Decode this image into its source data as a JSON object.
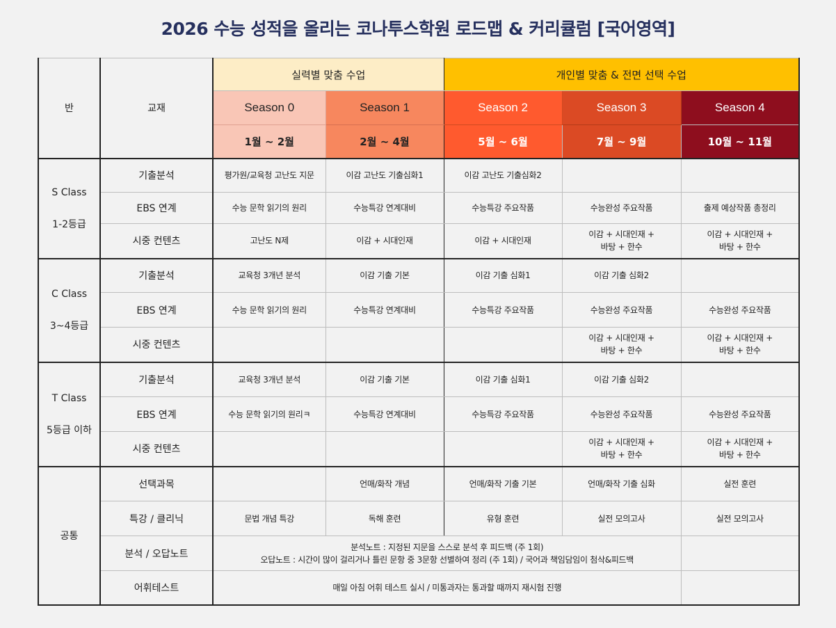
{
  "title": "2026 수능 성적을 올리는 코나투스학원 로드맵 & 커리큘럼 [국어영역]",
  "header": {
    "class_col": "반",
    "book_col": "교재",
    "group1": "실력별 맞춤 수업",
    "group2": "개인별 맞춤 & 전면 선택 수업",
    "seasons": [
      {
        "name": "Season 0",
        "months": "1월 ~ 2월",
        "color": "#f9c6b6"
      },
      {
        "name": "Season 1",
        "months": "2월 ~ 4월",
        "color": "#f7875e"
      },
      {
        "name": "Season 2",
        "months": "5월 ~ 6월",
        "color": "#ff5a2e"
      },
      {
        "name": "Season 3",
        "months": "7월 ~ 9월",
        "color": "#db4a24"
      },
      {
        "name": "Season 4",
        "months": "10월 ~ 11월",
        "color": "#8e0e1e"
      }
    ]
  },
  "classes": [
    {
      "name": "S Class",
      "grade": "1-2등급",
      "rows": [
        {
          "label": "기출분석",
          "cells": [
            "평가원/교육청 고난도 지문",
            "이감 고난도 기출심화1",
            "이감 고난도 기출심화2",
            "",
            ""
          ]
        },
        {
          "label": "EBS 연계",
          "cells": [
            "수능 문학 읽기의 원리",
            "수능특강 연계대비",
            "수능특강 주요작품",
            "수능완성 주요작품",
            "출제 예상작품 총정리"
          ]
        },
        {
          "label": "시중 컨텐츠",
          "cells": [
            "고난도 N제",
            "이감 + 시대인재",
            "이감 + 시대인재",
            "이감 + 시대인재 +\n바탕 + 한수",
            "이감 + 시대인재 +\n바탕 + 한수"
          ]
        }
      ]
    },
    {
      "name": "C Class",
      "grade": "3~4등급",
      "rows": [
        {
          "label": "기출분석",
          "cells": [
            "교육청 3개년 분석",
            "이감 기출 기본",
            "이감 기출 심화1",
            "이감 기출 심화2",
            ""
          ]
        },
        {
          "label": "EBS 연계",
          "cells": [
            "수능 문학 읽기의 원리",
            "수능특강 연계대비",
            "수능특강 주요작품",
            "수능완성 주요작품",
            "수능완성 주요작품"
          ]
        },
        {
          "label": "시중 컨텐츠",
          "cells": [
            "",
            "",
            "",
            "이감 + 시대인재 +\n바탕 + 한수",
            "이감 + 시대인재 +\n바탕 + 한수"
          ]
        }
      ]
    },
    {
      "name": "T Class",
      "grade": "5등급 이하",
      "rows": [
        {
          "label": "기출분석",
          "cells": [
            "교육청 3개년 분석",
            "이감 기출 기본",
            "이감 기출 심화1",
            "이감 기출 심화2",
            ""
          ]
        },
        {
          "label": "EBS 연계",
          "cells": [
            "수능 문학 읽기의 원리ㅋ",
            "수능특강 연계대비",
            "수능특강 주요작품",
            "수능완성 주요작품",
            "수능완성 주요작품"
          ]
        },
        {
          "label": "시중 컨텐츠",
          "cells": [
            "",
            "",
            "",
            "이감 + 시대인재 +\n바탕 + 한수",
            "이감 + 시대인재 +\n바탕 + 한수"
          ]
        }
      ]
    }
  ],
  "common": {
    "name": "공통",
    "elective": {
      "label": "선택과목",
      "cells": [
        "",
        "언매/화작 개념",
        "언매/화작 기출 기본",
        "언매/화작 기출 심화",
        "실전 훈련"
      ]
    },
    "special": {
      "label": "특강 / 클리닉",
      "cells": [
        "문법 개념 특강",
        "독해 훈련",
        "유형 훈련",
        "실전 모의고사",
        "실전 모의고사"
      ]
    },
    "notes": {
      "label": "분석 / 오답노트",
      "text": "분석노트 : 지정된 지문을 스스로 분석 후 피드백 (주 1회)\n오답노트 : 시간이 많이 걸리거나 틀린 문항 중 3문항 선별하여 정리 (주 1회) / 국어과 책임담임이 첨삭&피드백"
    },
    "vocab": {
      "label": "어휘테스트",
      "text": "매일 아침 어휘 테스트 실시 / 미통과자는 통과할 때까지 재시험 진행"
    }
  }
}
